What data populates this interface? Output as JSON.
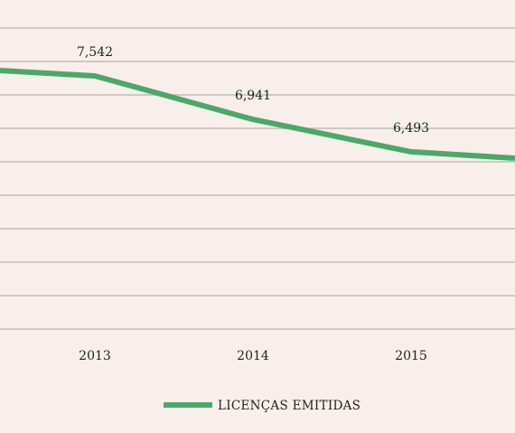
{
  "chart_data": {
    "type": "line",
    "x_visible_categories": [
      "2013",
      "2014",
      "2015"
    ],
    "series": [
      {
        "name": "LICENÇAS EMITIDAS",
        "color": "#4aa86a",
        "points": [
          {
            "x": "2013",
            "y": 7542,
            "label": "7,542"
          },
          {
            "x": "2014",
            "y": 6941,
            "label": "6,941"
          },
          {
            "x": "2015",
            "y": 6493,
            "label": "6,493"
          }
        ]
      }
    ],
    "grid": true,
    "legend_position": "bottom-center"
  }
}
